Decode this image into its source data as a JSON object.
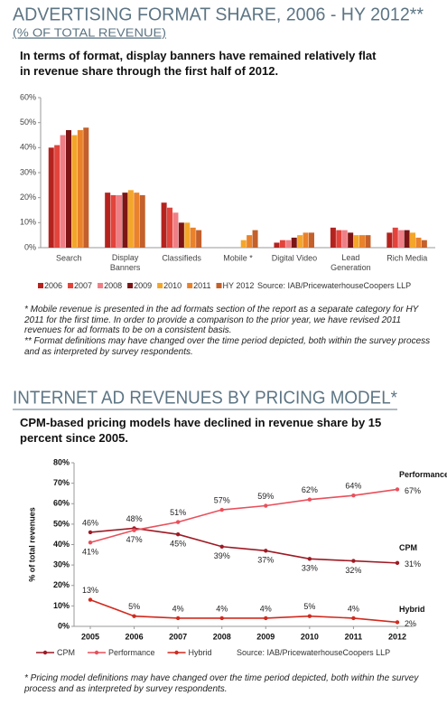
{
  "chart_data": [
    {
      "type": "bar",
      "title": "ADVERTISING FORMAT SHARE, 2006 - HY 2012**",
      "subtitle": "(% OF TOTAL REVENUE)",
      "description": "In terms of format, display banners have remained relatively flat in revenue share through the first half of 2012.",
      "categories": [
        "Search",
        "Display Banners",
        "Classifieds",
        "Mobile *",
        "Digital Video",
        "Lead Generation",
        "Rich Media"
      ],
      "series": [
        {
          "name": "2006",
          "color": "#b5231f",
          "values": [
            40,
            22,
            18,
            null,
            2,
            8,
            6
          ]
        },
        {
          "name": "2007",
          "color": "#e2443c",
          "values": [
            41,
            21,
            16,
            null,
            3,
            7,
            8
          ]
        },
        {
          "name": "2008",
          "color": "#ef7f86",
          "values": [
            45,
            21,
            14,
            null,
            3,
            7,
            7
          ]
        },
        {
          "name": "2009",
          "color": "#7c1515",
          "values": [
            47,
            22,
            10,
            null,
            4,
            6,
            7
          ]
        },
        {
          "name": "2010",
          "color": "#f4a62a",
          "values": [
            45,
            23,
            10,
            3,
            5,
            5,
            6
          ]
        },
        {
          "name": "2011",
          "color": "#e9822b",
          "values": [
            47,
            22,
            8,
            5,
            6,
            5,
            4
          ]
        },
        {
          "name": "HY 2012",
          "color": "#c4602b",
          "values": [
            48,
            21,
            7,
            7,
            6,
            5,
            3
          ]
        }
      ],
      "ylim": [
        0,
        60
      ],
      "yticks": [
        {
          "value": 0,
          "label": "0%"
        },
        {
          "value": 10,
          "label": "10%"
        },
        {
          "value": 20,
          "label": "20%"
        },
        {
          "value": 30,
          "label": "30%"
        },
        {
          "value": 40,
          "label": "40%"
        },
        {
          "value": 50,
          "label": "50%"
        },
        {
          "value": 60,
          "label": "60%"
        }
      ],
      "grid": false,
      "source": "Source: IAB/PricewaterhouseCoopers LLP",
      "footnotes": [
        "* Mobile revenue is presented in the ad formats section of the report as a separate category for HY 2011 for the first time. In order to provide a comparison to the prior year, we have revised 2011 revenues for ad formats to be on a consistent basis.",
        "** Format definitions may have changed over the time period depicted, both within the survey process and as interpreted by survey respondents."
      ]
    },
    {
      "type": "line",
      "title": "INTERNET AD REVENUES BY PRICING MODEL*",
      "description": "CPM-based pricing models have declined in revenue share by 15 percent since 2005.",
      "y_label": "% of total revenues",
      "categories": [
        "2005",
        "2006",
        "2007",
        "2008",
        "2009",
        "2010",
        "2011",
        "2012"
      ],
      "series": [
        {
          "name": "CPM",
          "color": "#9e1a24",
          "values": [
            46,
            48,
            45,
            39,
            37,
            33,
            32,
            31
          ],
          "value_labels": [
            "46%",
            "48%",
            "45%",
            "39%",
            "37%",
            "33%",
            "32%",
            "31%"
          ]
        },
        {
          "name": "Performance",
          "color": "#e8505b",
          "values": [
            41,
            47,
            51,
            57,
            59,
            62,
            64,
            67
          ],
          "value_labels": [
            "41%",
            "47%",
            "51%",
            "57%",
            "59%",
            "62%",
            "64%",
            "67%"
          ]
        },
        {
          "name": "Hybrid",
          "color": "#d22a1e",
          "values": [
            13,
            5,
            4,
            4,
            4,
            5,
            4,
            2
          ],
          "value_labels": [
            "13%",
            "5%",
            "4%",
            "4%",
            "4%",
            "5%",
            "4%",
            "2%"
          ]
        }
      ],
      "ylim": [
        0,
        80
      ],
      "yticks": [
        {
          "value": 0,
          "label": "0%"
        },
        {
          "value": 10,
          "label": "10%"
        },
        {
          "value": 20,
          "label": "20%"
        },
        {
          "value": 30,
          "label": "30%"
        },
        {
          "value": 40,
          "label": "40%"
        },
        {
          "value": 50,
          "label": "50%"
        },
        {
          "value": 60,
          "label": "60%"
        },
        {
          "value": 70,
          "label": "70%"
        },
        {
          "value": 80,
          "label": "80%"
        }
      ],
      "grid": false,
      "source": "Source: IAB/PricewaterhouseCoopers LLP",
      "footnotes": [
        "* Pricing model definitions may have changed over the time period depicted, both within the survey process and as interpreted by survey respondents."
      ]
    }
  ]
}
